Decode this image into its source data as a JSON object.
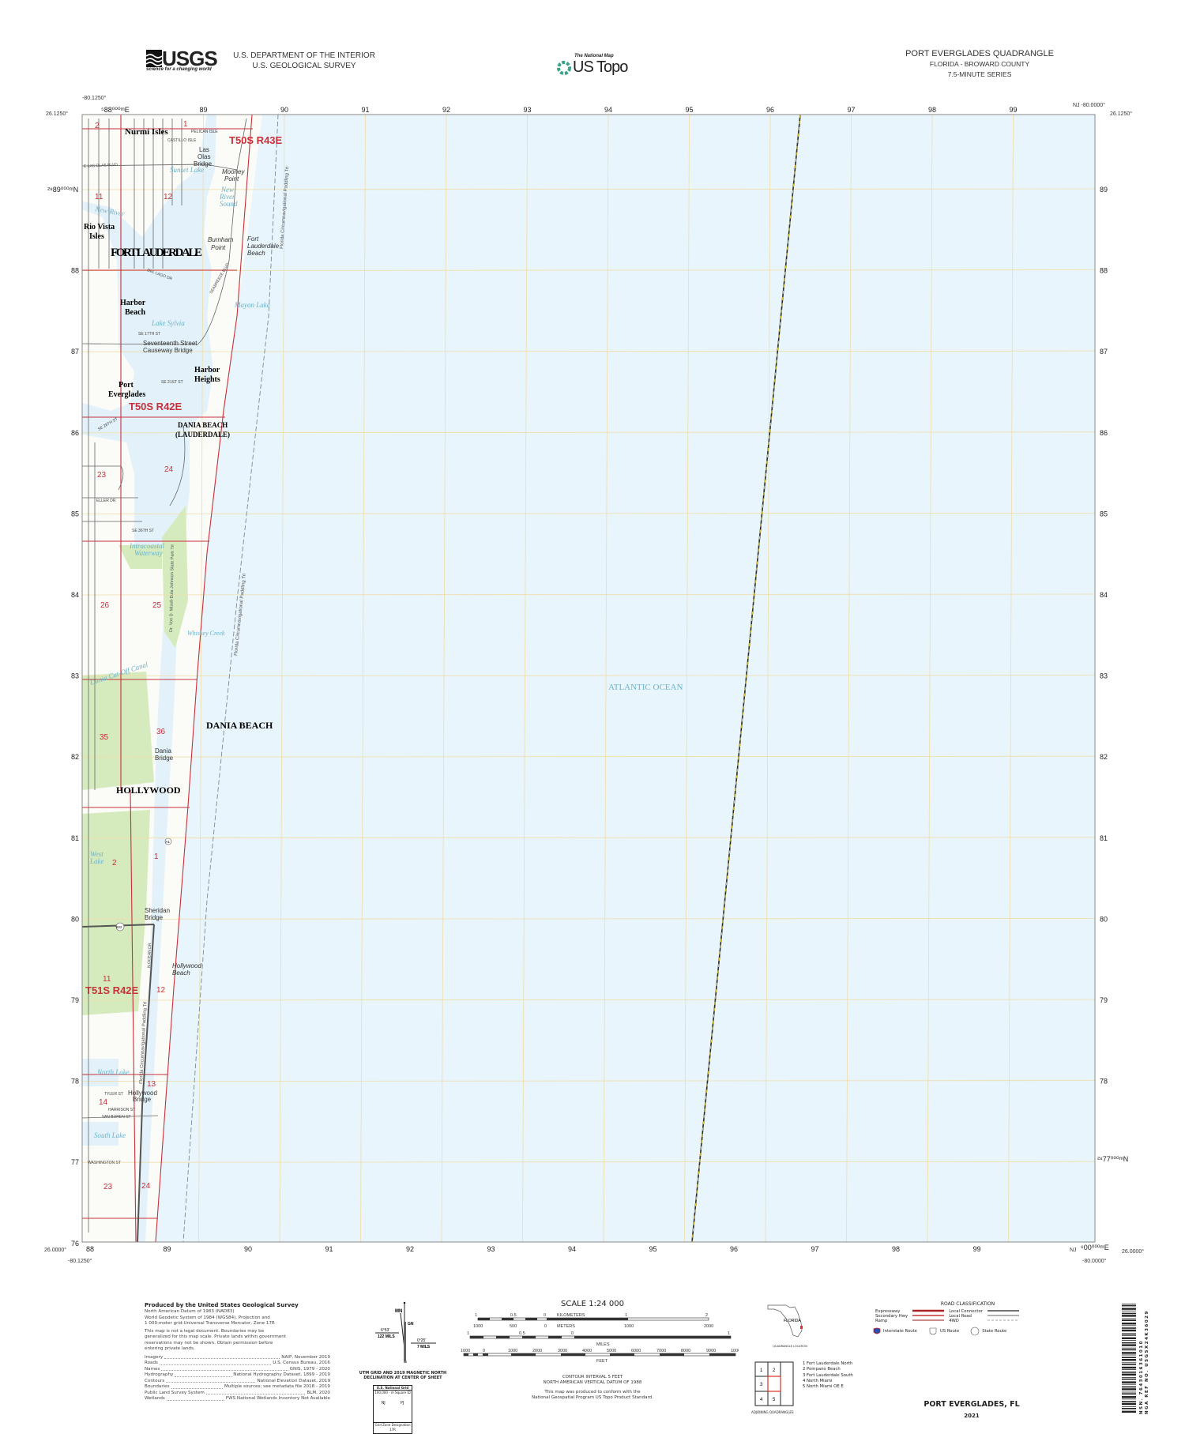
{
  "header": {
    "logo_text": "USGS",
    "logo_tagline": "science for a changing world",
    "dept_line1": "U.S. DEPARTMENT OF THE INTERIOR",
    "dept_line2": "U.S. GEOLOGICAL SURVEY",
    "national_map": "The National Map",
    "us_topo": "US Topo",
    "quad_title": "PORT EVERGLADES QUADRANGLE",
    "quad_state": "FLORIDA - BROWARD COUNTY",
    "quad_series": "7.5-MINUTE SERIES"
  },
  "map": {
    "corners": {
      "nw_lon": "-80.1250°",
      "nw_lat": "26.1250°",
      "ne_lon": "NJ -80.0000°",
      "ne_lat": "26.1250°",
      "sw_lon": "-80.1250°",
      "sw_lat": "26.0000°",
      "se_lon": "-80.0000°",
      "se_lat": "26.0000°",
      "se_zone": "NJ"
    },
    "easting_first": "⁵88⁰⁰⁰ᵐE",
    "easting_last": "⁶00⁰⁰⁰ᵐE",
    "northing_first": "²⁸89⁰⁰⁰ᵐN",
    "northing_last": "²⁸77⁰⁰⁰ᵐN",
    "eastings": [
      "89",
      "90",
      "91",
      "92",
      "93",
      "94",
      "95",
      "96",
      "97",
      "98",
      "99"
    ],
    "eastings_bottom": [
      "88",
      "89",
      "90",
      "91",
      "92",
      "93",
      "94",
      "95",
      "96",
      "97",
      "98",
      "99"
    ],
    "northings": [
      "89",
      "88",
      "87",
      "86",
      "85",
      "84",
      "83",
      "82",
      "81",
      "80",
      "79",
      "78",
      "77",
      "76"
    ],
    "colors": {
      "ocean": "#e8f5fc",
      "land": "#fbfbf8",
      "vegetation": "#d6ebbd",
      "grid": "#f0dca8",
      "boundary": "#c8303a",
      "road": "#555555"
    },
    "places": {
      "nurmi_isles": "Nurmi Isles",
      "fort_lauderdale": "FORT LAUDERDALE",
      "rio_vista_isles_1": "Rio Vista",
      "rio_vista_isles_2": "Isles",
      "harbor_beach_1": "Harbor",
      "harbor_beach_2": "Beach",
      "harbor_heights_1": "Harbor",
      "harbor_heights_2": "Heights",
      "port_everglades_1": "Port",
      "port_everglades_2": "Everglades",
      "dania_beach_laud_1": "DANIA BEACH",
      "dania_beach_laud_2": "(LAUDERDALE)",
      "dania_beach": "DANIA BEACH",
      "hollywood": "HOLLYWOOD",
      "las_olas_bridge": [
        "Las",
        "Olas",
        "Bridge"
      ],
      "mooney_point": [
        "Mooney",
        "Point"
      ],
      "burnham_point": [
        "Burnham",
        "Point"
      ],
      "fort_lauderdale_beach": [
        "Fort",
        "Lauderdale",
        "Beach"
      ],
      "seventeenth_bridge": [
        "Seventeenth Street",
        "Causeway Bridge"
      ],
      "dania_bridge": [
        "Dania",
        "Bridge"
      ],
      "sheridan_bridge": [
        "Sheridan",
        "Bridge"
      ],
      "hollywood_beach": [
        "Hollywood",
        "Beach"
      ],
      "hollywood_bridge": [
        "Hollywood",
        "Bridge"
      ]
    },
    "water_names": {
      "sunset_lake": "Sunset Lake",
      "new_river_sound": [
        "New",
        "River",
        "Sound"
      ],
      "new_river": "New River",
      "mayan_lake": "Mayan Lake",
      "lake_sylvia": "Lake Sylvia",
      "intracoastal": [
        "Intracoastal",
        "Waterway"
      ],
      "whiskey_creek": "Whiskey Creek",
      "dania_cutoff": "Dania Cut-Off Canal",
      "west_lake": [
        "West",
        "Lake"
      ],
      "north_lake": "North Lake",
      "south_lake": "South Lake",
      "atlantic": "ATLANTIC OCEAN"
    },
    "townships": [
      "T50S R43E",
      "T50S R42E",
      "T51S R42E"
    ],
    "sections": [
      "2",
      "1",
      "11",
      "12",
      "23",
      "24",
      "26",
      "25",
      "35",
      "36",
      "2",
      "1",
      "11",
      "12",
      "13",
      "14",
      "23",
      "24"
    ],
    "streets": [
      "PELICAN ISLE",
      "CASTILLO ISLE",
      "E LAS OLAS BLVD",
      "SE 17TH ST",
      "SE 21ST ST",
      "SE 28TH ST",
      "ELLER DR",
      "SE 36TH ST",
      "N OCEAN DR",
      "TYLER ST",
      "HARRISON ST",
      "VAN BUREN ST",
      "WASHINGTON ST",
      "SEABREEZE BLVD",
      "DEL LAGO DR"
    ],
    "trails": [
      "Florida Circumnavigational Paddling Trl",
      "Dr. Von D. Mizell-Eula Johnson State Park Trl"
    ],
    "routes": [
      "A1",
      "822"
    ]
  },
  "footer": {
    "produced_title": "Produced by the United States Geological Survey",
    "datum_lines": [
      "North American Datum of 1983 (NAD83)",
      "World Geodetic System of 1984 (WGS84).  Projection and",
      "1 000-meter grid:Universal Transverse Mercator, Zone 17R"
    ],
    "disclaimer": "This map is not a legal document. Boundaries may be generalized for this map scale. Private lands within government reservations may not be shown. Obtain permission before entering private lands.",
    "sources": [
      {
        "label": "Imagery",
        "value": "NAIP, November 2019"
      },
      {
        "label": "Roads",
        "value": "U.S. Census Bureau, 2016"
      },
      {
        "label": "Names",
        "value": "GNIS, 1979 - 2020"
      },
      {
        "label": "Hydrography",
        "value": "National Hydrography Dataset, 1899 - 2019"
      },
      {
        "label": "Contours",
        "value": "National Elevation Dataset, 2019"
      },
      {
        "label": "Boundaries",
        "value": "Multiple sources; see metadata file 2018 - 2019"
      },
      {
        "label": "Public Land Survey System",
        "value": "BLM, 2020"
      },
      {
        "label": "Wetlands",
        "value": "FWS National Wetlands Inventory Not Available"
      }
    ],
    "declination": {
      "mn": "MN",
      "gn": "GN",
      "left_angle": "6°53'",
      "left_mils": "122 MILS",
      "right_angle": "0°25'",
      "right_mils": "7 MILS",
      "caption": [
        "UTM GRID AND 2019 MAGNETIC NORTH",
        "DECLINATION AT CENTER OF SHEET"
      ]
    },
    "usng": {
      "title": "U.S. National Grid",
      "square_id": "100,000 - m Square ID",
      "left": "NJ",
      "right": "PJ",
      "zone_label": "Grid Zone Designation",
      "zone": "17R"
    },
    "scale": {
      "title": "SCALE 1:24 000",
      "km_ticks": [
        "1",
        "0.5",
        "0",
        "1",
        "2"
      ],
      "km_label": "KILOMETERS",
      "m_ticks": [
        "1000",
        "500",
        "0",
        "1000",
        "2000"
      ],
      "m_label": "METERS",
      "mi_ticks": [
        "1",
        "0.5",
        "0",
        "1"
      ],
      "mi_label": "MILES",
      "ft_ticks": [
        "1000",
        "0",
        "1000",
        "2000",
        "3000",
        "4000",
        "5000",
        "6000",
        "7000",
        "8000",
        "9000",
        "10000"
      ],
      "ft_label": "FEET"
    },
    "contour": [
      "CONTOUR INTERVAL 5 FEET",
      "NORTH AMERICAN VERTICAL DATUM OF 1988"
    ],
    "standard": [
      "This map was produced to conform with the",
      "National Geospatial Program US Topo Product Standard."
    ],
    "location": {
      "state": "FLORIDA",
      "caption": "QUADRANGLE LOCATION"
    },
    "adjoining": {
      "cells": [
        "1",
        "2",
        "3",
        "4",
        "5"
      ],
      "names": [
        "1 Fort Lauderdale North",
        "2 Pompano Beach",
        "3 Fort Lauderdale South",
        "4 North Miami",
        "5 North Miami OE E"
      ],
      "caption": "ADJOINING QUADRANGLES"
    },
    "roads": {
      "title": "ROAD CLASSIFICATION",
      "left": [
        "Expressway",
        "Secondary Hwy",
        "Ramp"
      ],
      "right": [
        "Local Connector",
        "Local Road",
        "4WD"
      ],
      "shields": [
        "Interstate Route",
        "US Route",
        "State Route"
      ]
    },
    "sheet_name": "PORT EVERGLADES, FL",
    "year": "2021",
    "barcode_text": [
      "NSN. 7643016361010",
      "NGA REF NO. USGSX24K36029"
    ]
  }
}
